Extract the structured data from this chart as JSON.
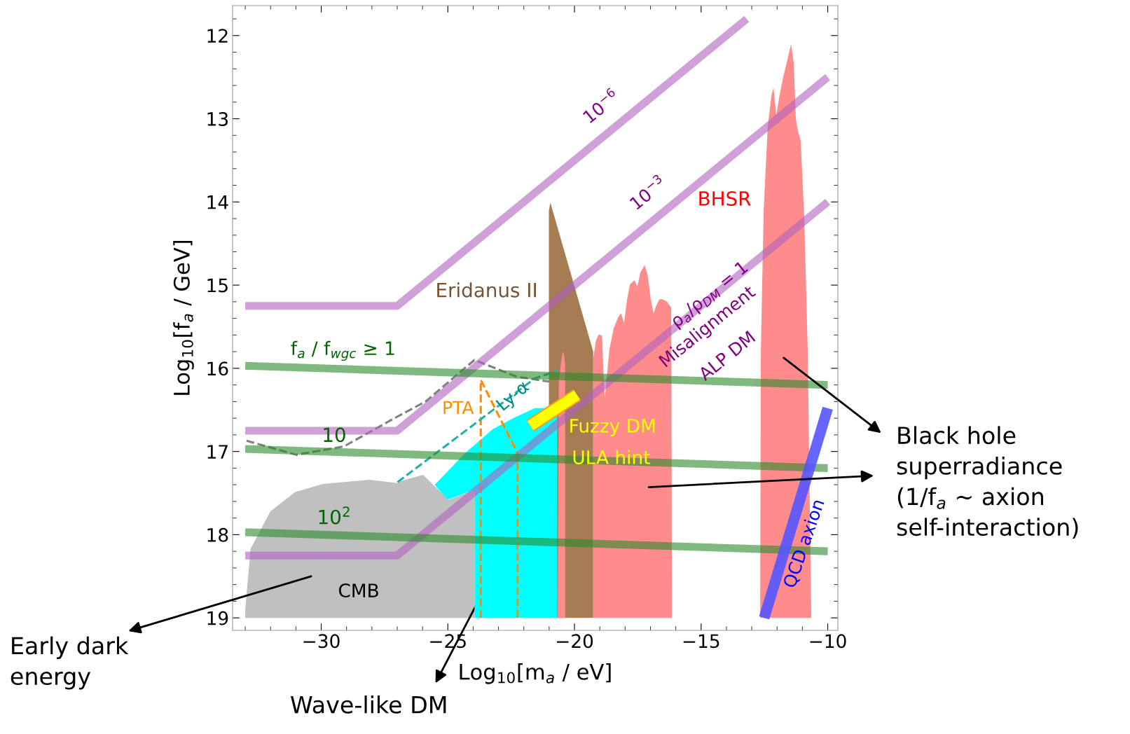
{
  "chart_data": {
    "type": "line",
    "xlabel": "Log$_{10}$[m$_{a}$ / eV]",
    "ylabel": "Log$_{10}$[f$_{a}$ / GeV]",
    "xlim": [
      -33.5,
      -9.6
    ],
    "ylim": [
      19.15,
      11.64
    ],
    "xticks": [
      {
        "value": -30,
        "label": "−30"
      },
      {
        "value": -25,
        "label": "−25"
      },
      {
        "value": -20,
        "label": "−20"
      },
      {
        "value": -15,
        "label": "−15"
      },
      {
        "value": -10,
        "label": "−10"
      }
    ],
    "yticks": [
      12,
      13,
      14,
      15,
      16,
      17,
      18,
      19
    ],
    "grid": false,
    "legend": false,
    "series": [
      {
        "type": "area",
        "color": "#c0c0c0",
        "x": [
          -33.0,
          -33.0,
          -32.79,
          -32.01,
          -31.04,
          -29.94,
          -28.09,
          -26.99,
          -26.81,
          -25.98,
          -25.61,
          -24.96,
          -23.95,
          -23.95
        ],
        "values": [
          19.0,
          18.9,
          18.17,
          17.72,
          17.49,
          17.39,
          17.34,
          17.38,
          17.35,
          17.28,
          17.39,
          17.58,
          17.46,
          19.0
        ]
      },
      {
        "type": "area",
        "color": "#a67c52",
        "x": [
          -21.01,
          -21.01,
          -20.95,
          -19.26,
          -19.26
        ],
        "values": [
          19.0,
          14.1,
          14.01,
          15.8,
          19.0
        ]
      },
      {
        "type": "area",
        "color": "#00ffff",
        "x": [
          -25.52,
          -24.32,
          -23.22,
          -22.29,
          -21.56,
          -20.68,
          -20.68,
          -23.95,
          -23.95,
          -25.01
        ],
        "values": [
          17.4,
          17.02,
          16.73,
          16.58,
          16.48,
          16.48,
          19.0,
          19.0,
          17.46,
          17.58
        ]
      },
      {
        "type": "area",
        "color": "#ff8c8c",
        "x": [
          -20.66,
          -20.62,
          -20.54,
          -20.49,
          -20.43,
          -20.37,
          -20.37
        ],
        "values": [
          19.0,
          16.16,
          15.95,
          15.84,
          15.8,
          15.95,
          19.0
        ]
      },
      {
        "type": "area",
        "color": "#ff8c8c",
        "x": [
          -19.26,
          -19.26,
          -19.15,
          -19.03,
          -18.91,
          -18.86,
          -18.8,
          -18.74,
          -18.62,
          -18.45,
          -18.27,
          -18.16,
          -18.04,
          -17.92,
          -17.81,
          -17.63,
          -17.52,
          -17.4,
          -17.23,
          -17.11,
          -16.99,
          -16.88,
          -16.76,
          -16.64,
          -16.53,
          -16.35,
          -16.18,
          -16.15
        ],
        "values": [
          19.0,
          15.88,
          15.66,
          15.59,
          15.61,
          16.02,
          16.37,
          16.16,
          15.77,
          15.52,
          15.38,
          15.34,
          15.45,
          15.17,
          14.99,
          14.94,
          15.02,
          14.85,
          14.76,
          14.88,
          15.17,
          15.34,
          15.24,
          15.17,
          15.17,
          15.2,
          15.27,
          19.0
        ]
      },
      {
        "type": "area",
        "color": "#ff8c8c",
        "x": [
          -12.67,
          -12.64,
          -12.53,
          -12.37,
          -12.22,
          -12.14,
          -12.03,
          -11.92,
          -11.76,
          -11.56,
          -11.45,
          -11.34,
          -11.26,
          -11.18,
          -11.07,
          -10.93,
          -10.79,
          -10.65
        ],
        "values": [
          19.0,
          15.78,
          14.1,
          13.1,
          12.71,
          12.63,
          12.96,
          12.75,
          12.5,
          12.25,
          12.1,
          12.33,
          13.0,
          13.14,
          13.26,
          14.16,
          15.78,
          19.0
        ]
      },
      {
        "color": "#ff8c00",
        "line_style": "dashed",
        "x": [
          -23.7,
          -23.7,
          -22.25,
          -22.25
        ],
        "values": [
          19.0,
          16.14,
          17.02,
          19.0
        ]
      },
      {
        "color": "#20b2aa",
        "line_style": "dashed",
        "x": [
          -26.99,
          -21.56,
          -20.68
        ],
        "values": [
          17.37,
          16.12,
          16.03
        ]
      },
      {
        "color": "#808080",
        "line_style": "dashed",
        "x": [
          -32.95,
          -30.99,
          -29.11,
          -26.99,
          -25.88,
          -23.95,
          -22.29,
          -21.0
        ],
        "values": [
          16.87,
          17.04,
          16.94,
          16.58,
          16.4,
          15.9,
          16.1,
          16.16
        ]
      },
      {
        "color": "#b060c0",
        "line_style": "solid",
        "x": [
          -33.0,
          -27.0,
          -13.2
        ],
        "values": [
          15.25,
          15.25,
          11.8
        ]
      },
      {
        "color": "#b060c0",
        "line_style": "solid",
        "x": [
          -33.0,
          -27.0,
          -10.0
        ],
        "values": [
          16.75,
          16.75,
          12.5
        ]
      },
      {
        "color": "#b060c0",
        "line_style": "solid",
        "x": [
          -33.0,
          -27.0,
          -10.0
        ],
        "values": [
          18.25,
          18.25,
          14.0
        ]
      },
      {
        "color": "#2a8a2a",
        "line_style": "solid",
        "x": [
          -33.0,
          -10.0
        ],
        "values": [
          15.97,
          16.2
        ]
      },
      {
        "color": "#2a8a2a",
        "line_style": "solid",
        "x": [
          -33.0,
          -10.0
        ],
        "values": [
          16.97,
          17.2
        ]
      },
      {
        "color": "#2a8a2a",
        "line_style": "solid",
        "x": [
          -33.0,
          -10.0
        ],
        "values": [
          17.97,
          18.2
        ]
      },
      {
        "color": "#ffff00",
        "line_style": "solid",
        "x": [
          -21.74,
          -19.9
        ],
        "values": [
          16.69,
          16.32
        ]
      },
      {
        "color": "#5555ff",
        "line_style": "solid",
        "x": [
          -12.51,
          -10.0
        ],
        "values": [
          19.0,
          16.48
        ]
      }
    ],
    "annotations": [
      "10$^{−6}$",
      "10$^{−3}$",
      "BHSR",
      "Eridanus II",
      "ρ$_{a}$/ρ$_{DM}$ = 1",
      "Misalignment",
      "ALP DM",
      "f$_{a}$ / f$_{wgc}$ ≥ 1",
      "10",
      "10$^{2}$",
      "PTA",
      "Ly-α",
      "Fuzzy DM",
      "ULA hint",
      "CMB",
      "QCD axion",
      "Early dark\nenergy",
      "Wave-like DM",
      "Black hole\nsuperradiance\n(1/f$_{a}$ ~ axion\nself-interaction)"
    ]
  }
}
